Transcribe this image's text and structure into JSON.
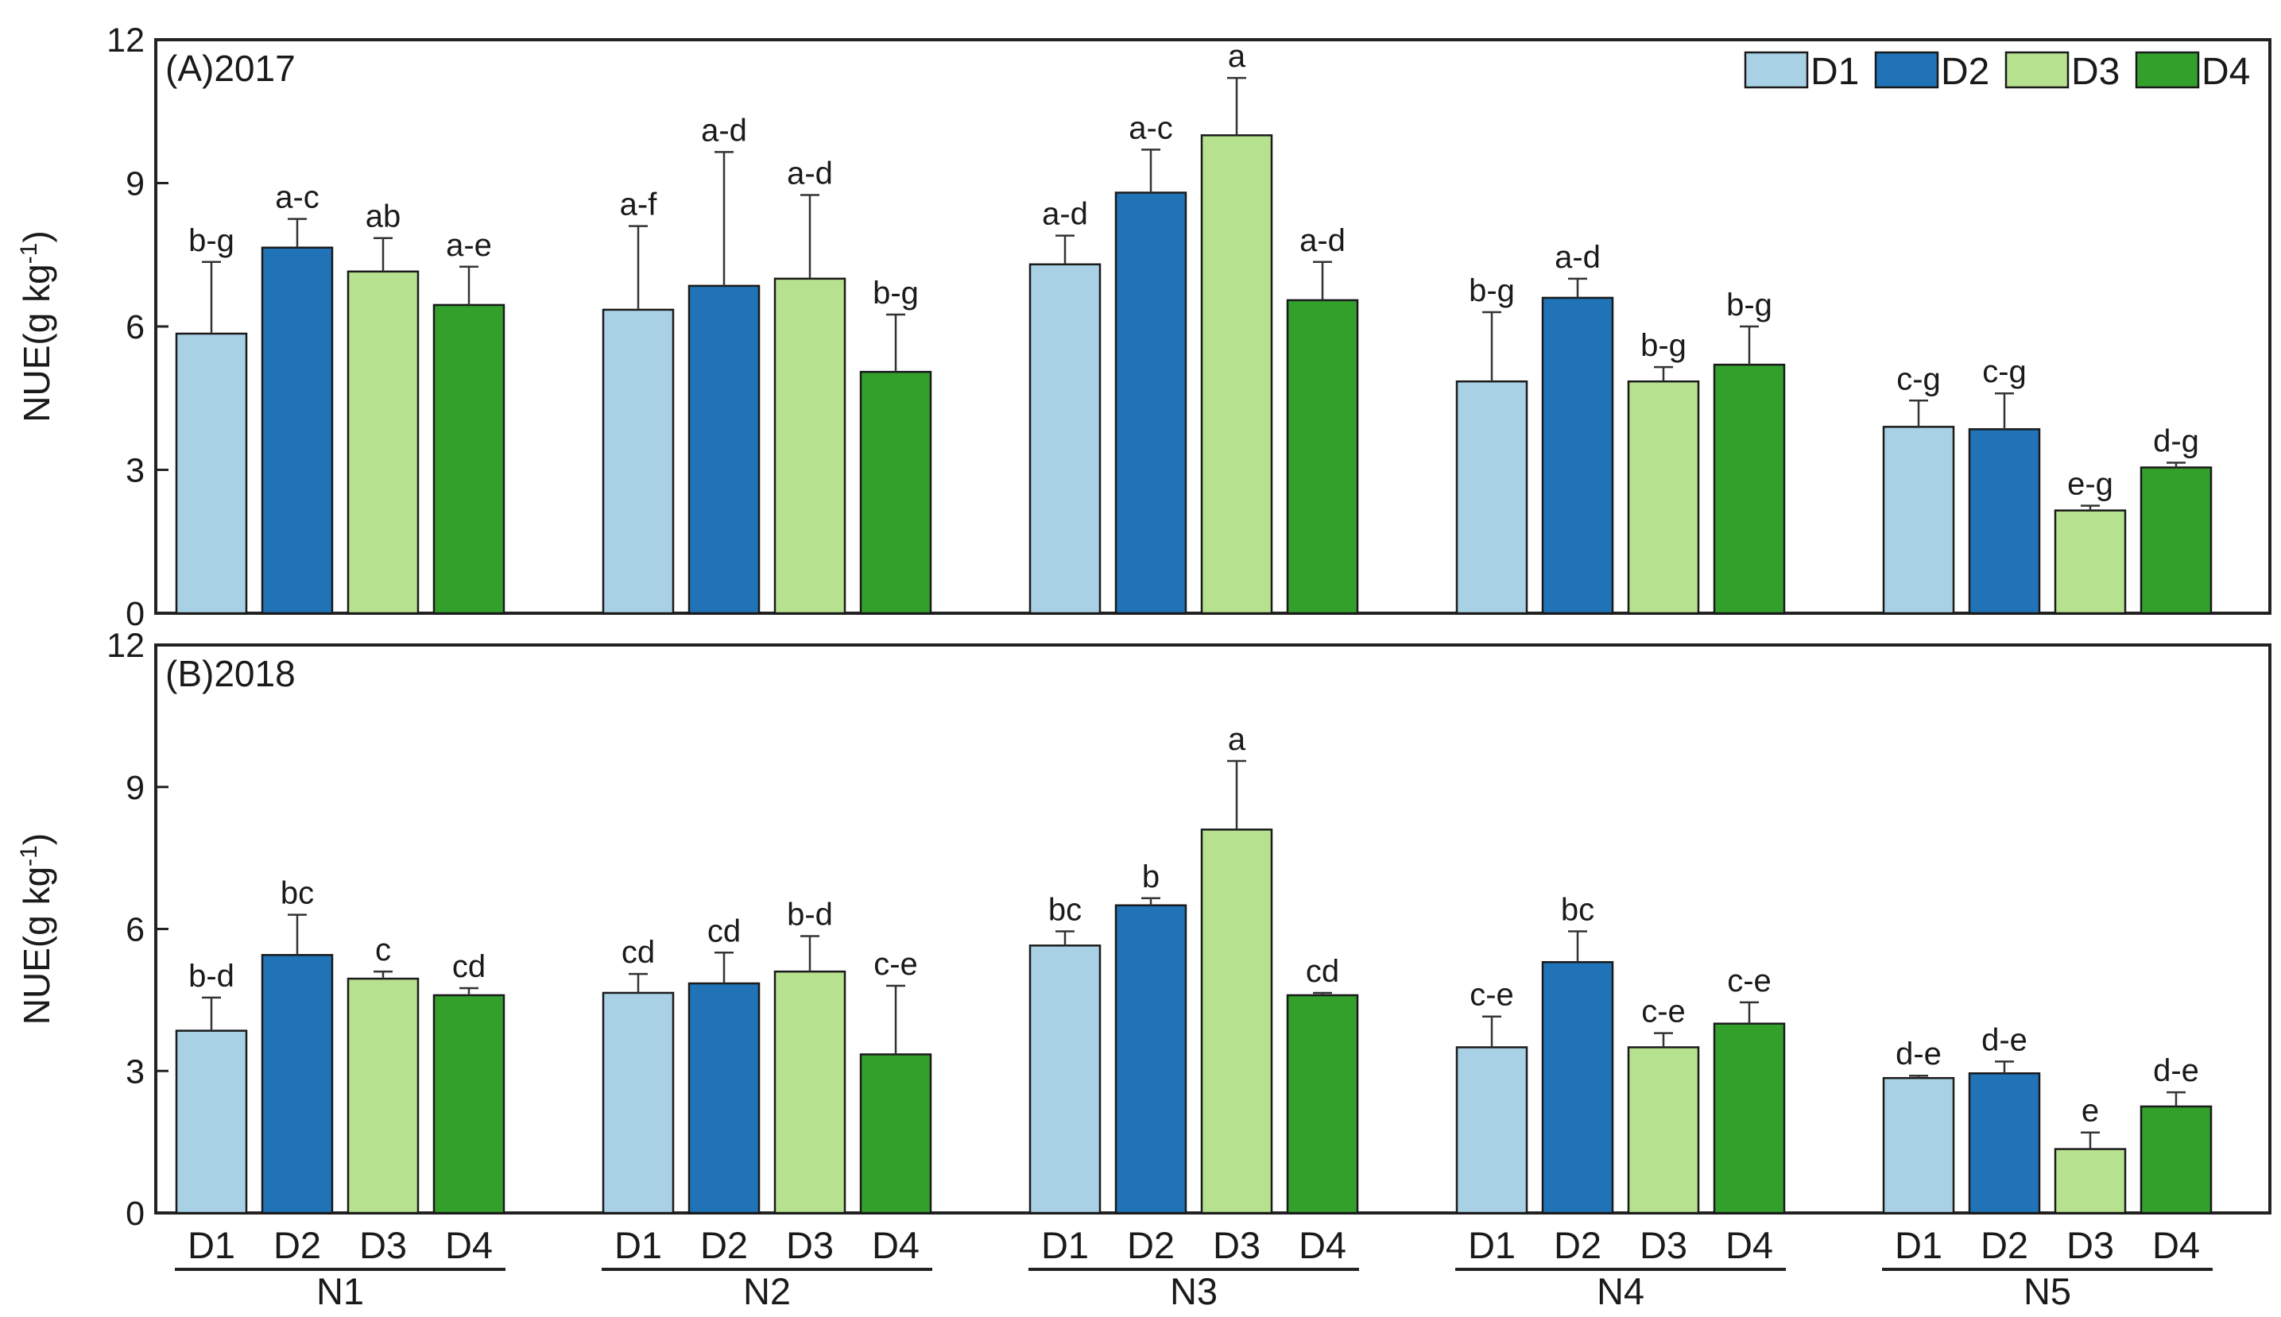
{
  "chart_data": {
    "type": "bar",
    "groups": [
      "N1",
      "N2",
      "N3",
      "N4",
      "N5"
    ],
    "series_names": [
      "D1",
      "D2",
      "D3",
      "D4"
    ],
    "colors": {
      "D1": "#a9d1e6",
      "D2": "#1f73b6",
      "D3": "#b6e18f",
      "D4": "#33a02c"
    },
    "legend": {
      "position": "top-right",
      "items": [
        "D1",
        "D2",
        "D3",
        "D4"
      ]
    },
    "x_category_labels": [
      "D1",
      "D2",
      "D3",
      "D4"
    ],
    "group_labels": [
      "N1",
      "N2",
      "N3",
      "N4",
      "N5"
    ],
    "panels": [
      {
        "title": "(A)2017",
        "ylabel": "NUE(g kg",
        "ylabel_sup": "-1",
        "ylabel_close": ")",
        "ylim": [
          0,
          12
        ],
        "yticks": [
          0,
          3,
          6,
          9,
          12
        ],
        "show_legend": true,
        "bars": [
          [
            {
              "value": 5.85,
              "err": 1.5,
              "label": "b-g"
            },
            {
              "value": 7.65,
              "err": 0.6,
              "label": "a-c"
            },
            {
              "value": 7.15,
              "err": 0.7,
              "label": "ab"
            },
            {
              "value": 6.45,
              "err": 0.8,
              "label": "a-e"
            }
          ],
          [
            {
              "value": 6.35,
              "err": 1.75,
              "label": "a-f"
            },
            {
              "value": 6.85,
              "err": 2.8,
              "label": "a-d"
            },
            {
              "value": 7.0,
              "err": 1.75,
              "label": "a-d"
            },
            {
              "value": 5.05,
              "err": 1.2,
              "label": "b-g"
            }
          ],
          [
            {
              "value": 7.3,
              "err": 0.6,
              "label": "a-d"
            },
            {
              "value": 8.8,
              "err": 0.9,
              "label": "a-c"
            },
            {
              "value": 10.0,
              "err": 1.2,
              "label": "a"
            },
            {
              "value": 6.55,
              "err": 0.8,
              "label": "a-d"
            }
          ],
          [
            {
              "value": 4.85,
              "err": 1.45,
              "label": "b-g"
            },
            {
              "value": 6.6,
              "err": 0.4,
              "label": "a-d"
            },
            {
              "value": 4.85,
              "err": 0.3,
              "label": "b-g"
            },
            {
              "value": 5.2,
              "err": 0.8,
              "label": "b-g"
            }
          ],
          [
            {
              "value": 3.9,
              "err": 0.55,
              "label": "c-g"
            },
            {
              "value": 3.85,
              "err": 0.75,
              "label": "c-g"
            },
            {
              "value": 2.15,
              "err": 0.1,
              "label": "e-g"
            },
            {
              "value": 3.05,
              "err": 0.1,
              "label": "d-g"
            }
          ]
        ]
      },
      {
        "title": "(B)2018",
        "ylabel": "NUE(g kg",
        "ylabel_sup": "-1",
        "ylabel_close": ")",
        "ylim": [
          0,
          12
        ],
        "yticks": [
          0,
          3,
          6,
          9,
          12
        ],
        "show_legend": false,
        "bars": [
          [
            {
              "value": 3.85,
              "err": 0.7,
              "label": "b-d"
            },
            {
              "value": 5.45,
              "err": 0.85,
              "label": "bc"
            },
            {
              "value": 4.95,
              "err": 0.15,
              "label": "c"
            },
            {
              "value": 4.6,
              "err": 0.15,
              "label": "cd"
            }
          ],
          [
            {
              "value": 4.65,
              "err": 0.4,
              "label": "cd"
            },
            {
              "value": 4.85,
              "err": 0.65,
              "label": "cd"
            },
            {
              "value": 5.1,
              "err": 0.75,
              "label": "b-d"
            },
            {
              "value": 3.35,
              "err": 1.45,
              "label": "c-e"
            }
          ],
          [
            {
              "value": 5.65,
              "err": 0.3,
              "label": "bc"
            },
            {
              "value": 6.5,
              "err": 0.15,
              "label": "b"
            },
            {
              "value": 8.1,
              "err": 1.45,
              "label": "a"
            },
            {
              "value": 4.6,
              "err": 0.05,
              "label": "cd"
            }
          ],
          [
            {
              "value": 3.5,
              "err": 0.65,
              "label": "c-e"
            },
            {
              "value": 5.3,
              "err": 0.65,
              "label": "bc"
            },
            {
              "value": 3.5,
              "err": 0.3,
              "label": "c-e"
            },
            {
              "value": 4.0,
              "err": 0.45,
              "label": "c-e"
            }
          ],
          [
            {
              "value": 2.85,
              "err": 0.05,
              "label": "d-e"
            },
            {
              "value": 2.95,
              "err": 0.25,
              "label": "d-e"
            },
            {
              "value": 1.35,
              "err": 0.35,
              "label": "e"
            },
            {
              "value": 2.25,
              "err": 0.3,
              "label": "d-e"
            }
          ]
        ]
      }
    ]
  }
}
